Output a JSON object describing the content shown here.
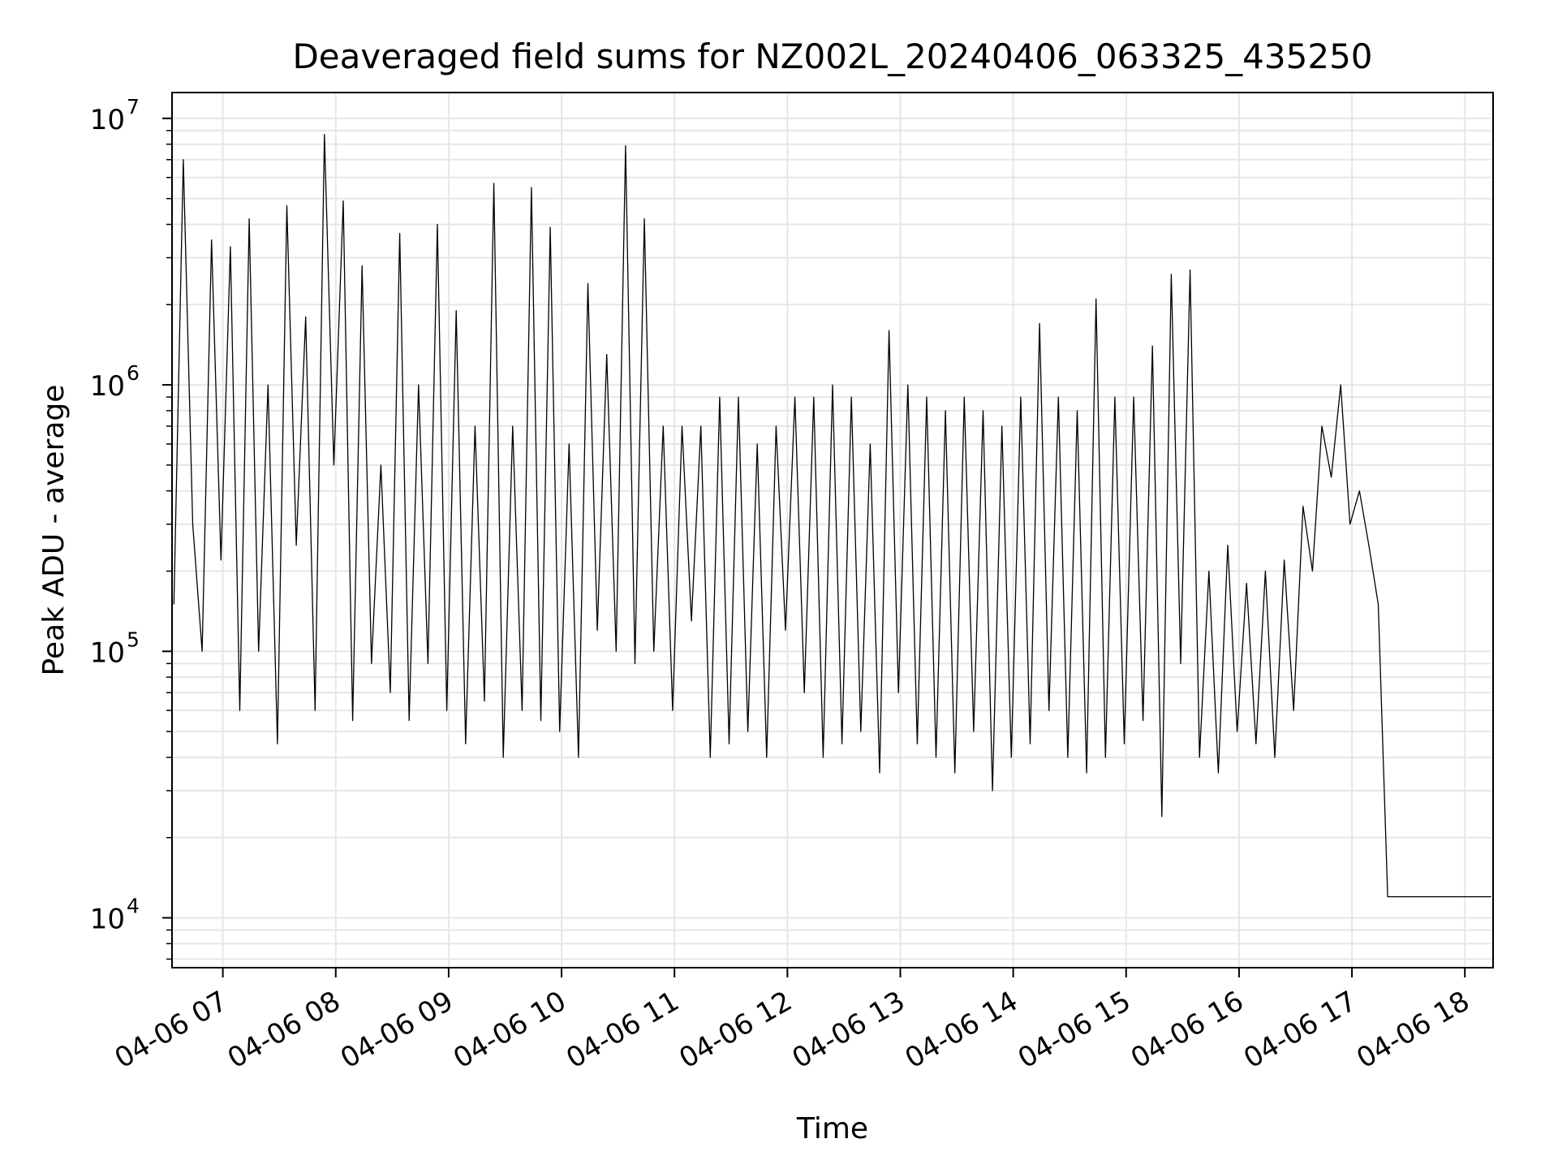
{
  "chart_data": {
    "type": "line",
    "title": "Deaveraged field sums for NZ002L_20240406_063325_435250",
    "xlabel": "Time",
    "ylabel": "Peak ADU - average",
    "yscale": "log",
    "ylim": [
      6500,
      12500000
    ],
    "xlim": [
      "2024-04-06 06:33",
      "2024-04-06 18:15"
    ],
    "grid": true,
    "line_color": "#000000",
    "grid_color": "#e6e6e6",
    "x_tick_labels": [
      "04-06 07",
      "04-06 08",
      "04-06 09",
      "04-06 10",
      "04-06 11",
      "04-06 12",
      "04-06 13",
      "04-06 14",
      "04-06 15",
      "04-06 16",
      "04-06 17",
      "04-06 18"
    ],
    "y_ticks": [
      {
        "base": "10",
        "exp": "4",
        "value": 10000
      },
      {
        "base": "10",
        "exp": "5",
        "value": 100000
      },
      {
        "base": "10",
        "exp": "6",
        "value": 1000000
      },
      {
        "base": "10",
        "exp": "7",
        "value": 10000000
      }
    ],
    "series": [
      {
        "x": [
          "2024-04-06 06:34",
          "2024-04-06 06:39",
          "2024-04-06 06:44",
          "2024-04-06 06:49",
          "2024-04-06 06:54",
          "2024-04-06 06:59",
          "2024-04-06 07:04",
          "2024-04-06 07:09",
          "2024-04-06 07:14",
          "2024-04-06 07:19",
          "2024-04-06 07:24",
          "2024-04-06 07:29",
          "2024-04-06 07:34",
          "2024-04-06 07:39",
          "2024-04-06 07:44",
          "2024-04-06 07:49",
          "2024-04-06 07:54",
          "2024-04-06 07:59",
          "2024-04-06 08:04",
          "2024-04-06 08:09",
          "2024-04-06 08:14",
          "2024-04-06 08:19",
          "2024-04-06 08:24",
          "2024-04-06 08:29",
          "2024-04-06 08:34",
          "2024-04-06 08:39",
          "2024-04-06 08:44",
          "2024-04-06 08:49",
          "2024-04-06 08:54",
          "2024-04-06 08:59",
          "2024-04-06 09:04",
          "2024-04-06 09:09",
          "2024-04-06 09:14",
          "2024-04-06 09:19",
          "2024-04-06 09:24",
          "2024-04-06 09:29",
          "2024-04-06 09:34",
          "2024-04-06 09:39",
          "2024-04-06 09:44",
          "2024-04-06 09:49",
          "2024-04-06 09:54",
          "2024-04-06 09:59",
          "2024-04-06 10:04",
          "2024-04-06 10:09",
          "2024-04-06 10:14",
          "2024-04-06 10:19",
          "2024-04-06 10:24",
          "2024-04-06 10:29",
          "2024-04-06 10:34",
          "2024-04-06 10:39",
          "2024-04-06 10:44",
          "2024-04-06 10:49",
          "2024-04-06 10:54",
          "2024-04-06 10:59",
          "2024-04-06 11:04",
          "2024-04-06 11:09",
          "2024-04-06 11:14",
          "2024-04-06 11:19",
          "2024-04-06 11:24",
          "2024-04-06 11:29",
          "2024-04-06 11:34",
          "2024-04-06 11:39",
          "2024-04-06 11:44",
          "2024-04-06 11:49",
          "2024-04-06 11:54",
          "2024-04-06 11:59",
          "2024-04-06 12:04",
          "2024-04-06 12:09",
          "2024-04-06 12:14",
          "2024-04-06 12:19",
          "2024-04-06 12:24",
          "2024-04-06 12:29",
          "2024-04-06 12:34",
          "2024-04-06 12:39",
          "2024-04-06 12:44",
          "2024-04-06 12:49",
          "2024-04-06 12:54",
          "2024-04-06 12:59",
          "2024-04-06 13:04",
          "2024-04-06 13:09",
          "2024-04-06 13:14",
          "2024-04-06 13:19",
          "2024-04-06 13:24",
          "2024-04-06 13:29",
          "2024-04-06 13:34",
          "2024-04-06 13:39",
          "2024-04-06 13:44",
          "2024-04-06 13:49",
          "2024-04-06 13:54",
          "2024-04-06 13:59",
          "2024-04-06 14:04",
          "2024-04-06 14:09",
          "2024-04-06 14:14",
          "2024-04-06 14:19",
          "2024-04-06 14:24",
          "2024-04-06 14:29",
          "2024-04-06 14:34",
          "2024-04-06 14:39",
          "2024-04-06 14:44",
          "2024-04-06 14:49",
          "2024-04-06 14:54",
          "2024-04-06 14:59",
          "2024-04-06 15:04",
          "2024-04-06 15:09",
          "2024-04-06 15:14",
          "2024-04-06 15:19",
          "2024-04-06 15:24",
          "2024-04-06 15:29",
          "2024-04-06 15:34",
          "2024-04-06 15:39",
          "2024-04-06 15:44",
          "2024-04-06 15:49",
          "2024-04-06 15:54",
          "2024-04-06 15:59",
          "2024-04-06 16:04",
          "2024-04-06 16:09",
          "2024-04-06 16:14",
          "2024-04-06 16:19",
          "2024-04-06 16:24",
          "2024-04-06 16:29",
          "2024-04-06 16:34",
          "2024-04-06 16:39",
          "2024-04-06 16:44",
          "2024-04-06 16:49",
          "2024-04-06 16:54",
          "2024-04-06 16:59",
          "2024-04-06 17:04",
          "2024-04-06 17:09",
          "2024-04-06 17:14",
          "2024-04-06 17:19",
          "2024-04-06 17:24",
          "2024-04-06 17:29",
          "2024-04-06 17:34",
          "2024-04-06 17:39",
          "2024-04-06 17:44",
          "2024-04-06 17:49",
          "2024-04-06 17:54",
          "2024-04-06 17:59",
          "2024-04-06 18:04",
          "2024-04-06 18:09",
          "2024-04-06 18:14"
        ],
        "y": [
          150000,
          7000000,
          300000,
          100000,
          3500000,
          220000,
          3300000,
          60000,
          4200000,
          100000,
          1000000,
          45000,
          4700000,
          250000,
          1800000,
          60000,
          8700000,
          500000,
          4900000,
          55000,
          2800000,
          90000,
          500000,
          70000,
          3700000,
          55000,
          1000000,
          90000,
          4000000,
          60000,
          1900000,
          45000,
          700000,
          65000,
          5700000,
          40000,
          700000,
          60000,
          5500000,
          55000,
          3900000,
          50000,
          600000,
          40000,
          2400000,
          120000,
          1300000,
          100000,
          7900000,
          90000,
          4200000,
          100000,
          700000,
          60000,
          700000,
          130000,
          700000,
          40000,
          900000,
          45000,
          900000,
          50000,
          600000,
          40000,
          700000,
          120000,
          900000,
          70000,
          900000,
          40000,
          1000000,
          45000,
          900000,
          50000,
          600000,
          35000,
          1600000,
          70000,
          1000000,
          45000,
          900000,
          40000,
          800000,
          35000,
          900000,
          50000,
          800000,
          30000,
          700000,
          40000,
          900000,
          45000,
          1700000,
          60000,
          900000,
          40000,
          800000,
          35000,
          2100000,
          40000,
          900000,
          45000,
          900000,
          55000,
          1400000,
          24000,
          2600000,
          90000,
          2700000,
          40000,
          200000,
          35000,
          250000,
          50000,
          180000,
          45000,
          200000,
          40000,
          220000,
          60000,
          350000,
          200000,
          700000,
          450000,
          1000000,
          300000,
          400000,
          250000,
          150000,
          12000,
          12000,
          12000,
          12000,
          12000,
          12000,
          12000,
          12000,
          12000,
          12000,
          12000,
          12000
        ]
      }
    ]
  }
}
